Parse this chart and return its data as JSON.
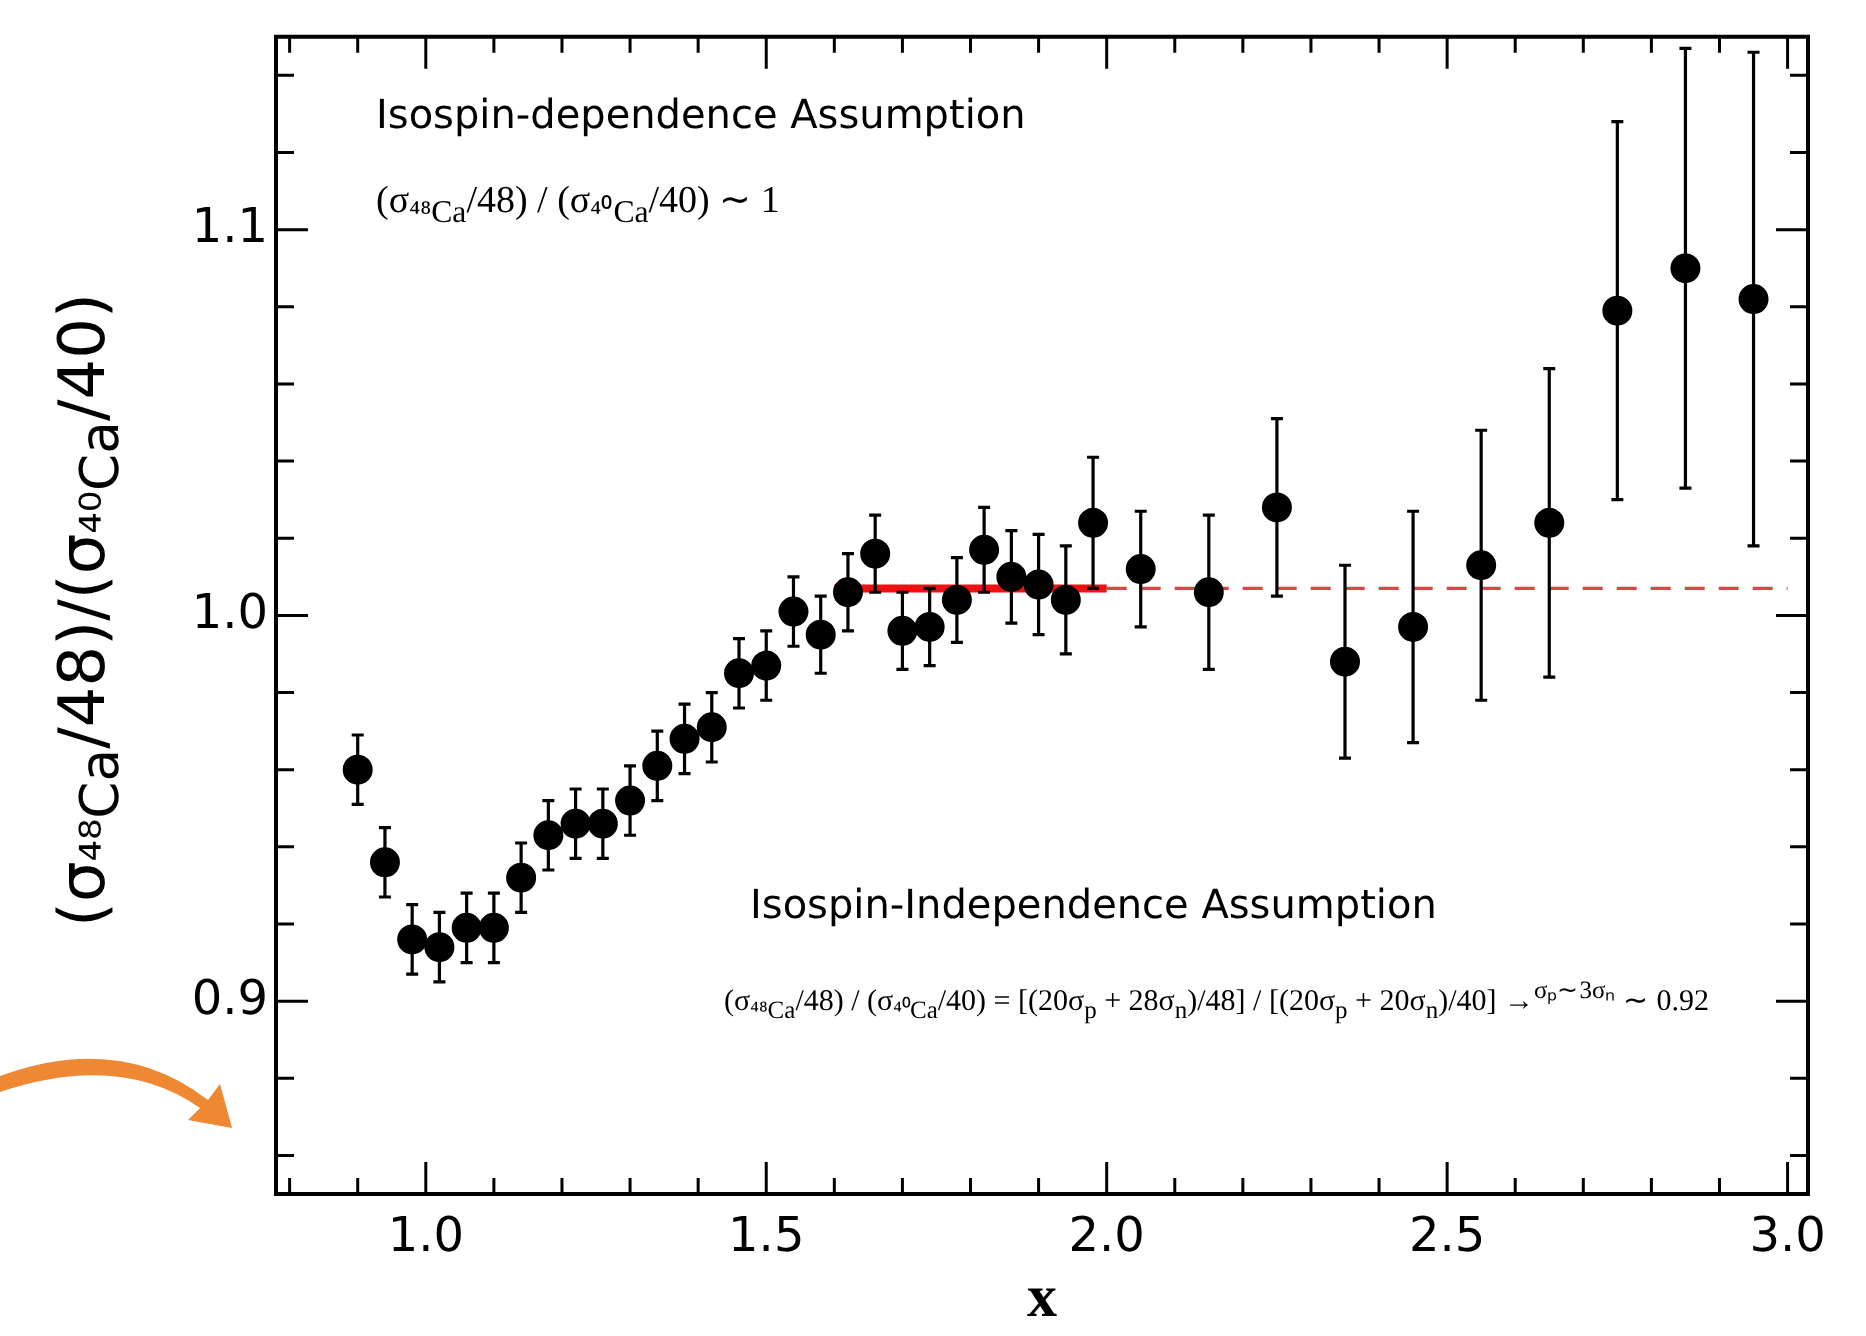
{
  "chart_data": {
    "type": "scatter",
    "xlabel": "x",
    "ylabel": "(σ$_{⁴⁸Ca}$/48)/(σ$_{⁴⁰Ca}$/40)",
    "xlim": [
      0.78,
      3.03
    ],
    "ylim": [
      0.85,
      1.15
    ],
    "xticks": [
      {
        "value": 0.8,
        "label": null
      },
      {
        "value": 0.9,
        "label": null
      },
      {
        "value": 1.0,
        "label": "1.0"
      },
      {
        "value": 1.1,
        "label": null
      },
      {
        "value": 1.2,
        "label": null
      },
      {
        "value": 1.3,
        "label": null
      },
      {
        "value": 1.4,
        "label": null
      },
      {
        "value": 1.5,
        "label": "1.5"
      },
      {
        "value": 1.6,
        "label": null
      },
      {
        "value": 1.7,
        "label": null
      },
      {
        "value": 1.8,
        "label": null
      },
      {
        "value": 1.9,
        "label": null
      },
      {
        "value": 2.0,
        "label": "2.0"
      },
      {
        "value": 2.1,
        "label": null
      },
      {
        "value": 2.2,
        "label": null
      },
      {
        "value": 2.3,
        "label": null
      },
      {
        "value": 2.4,
        "label": null
      },
      {
        "value": 2.5,
        "label": "2.5"
      },
      {
        "value": 2.6,
        "label": null
      },
      {
        "value": 2.7,
        "label": null
      },
      {
        "value": 2.8,
        "label": null
      },
      {
        "value": 2.9,
        "label": null
      },
      {
        "value": 3.0,
        "label": "3.0"
      }
    ],
    "yticks": [
      {
        "value": 0.86,
        "label": null
      },
      {
        "value": 0.88,
        "label": null
      },
      {
        "value": 0.9,
        "label": "0.9"
      },
      {
        "value": 0.92,
        "label": null
      },
      {
        "value": 0.94,
        "label": null
      },
      {
        "value": 0.96,
        "label": null
      },
      {
        "value": 0.98,
        "label": null
      },
      {
        "value": 1.0,
        "label": "1.0"
      },
      {
        "value": 1.02,
        "label": null
      },
      {
        "value": 1.04,
        "label": null
      },
      {
        "value": 1.06,
        "label": null
      },
      {
        "value": 1.08,
        "label": null
      },
      {
        "value": 1.1,
        "label": "1.1"
      },
      {
        "value": 1.12,
        "label": null
      },
      {
        "value": 1.14,
        "label": null
      }
    ],
    "grid": false,
    "legend": false,
    "marker": "circle",
    "series": [
      {
        "color": "#000000",
        "x": [
          0.9,
          0.94,
          0.98,
          1.02,
          1.06,
          1.1,
          1.14,
          1.18,
          1.22,
          1.26,
          1.3,
          1.34,
          1.38,
          1.42,
          1.46,
          1.5,
          1.54,
          1.58,
          1.62,
          1.66,
          1.7,
          1.74,
          1.78,
          1.82,
          1.86,
          1.9,
          1.94,
          1.98,
          2.05,
          2.15,
          2.25,
          2.35,
          2.45,
          2.55,
          2.65,
          2.75,
          2.85,
          2.95
        ],
        "values": [
          0.96,
          0.936,
          0.916,
          0.914,
          0.919,
          0.919,
          0.932,
          0.943,
          0.946,
          0.946,
          0.952,
          0.961,
          0.968,
          0.971,
          0.985,
          0.987,
          1.001,
          0.995,
          1.006,
          1.016,
          0.996,
          0.997,
          1.004,
          1.017,
          1.01,
          1.008,
          1.004,
          1.024,
          1.012,
          1.006,
          1.028,
          0.988,
          0.997,
          1.013,
          1.024,
          1.079,
          1.09,
          1.082
        ],
        "errors": [
          0.009,
          0.009,
          0.009,
          0.009,
          0.009,
          0.009,
          0.009,
          0.009,
          0.009,
          0.009,
          0.009,
          0.009,
          0.009,
          0.009,
          0.009,
          0.009,
          0.009,
          0.01,
          0.01,
          0.01,
          0.01,
          0.01,
          0.011,
          0.011,
          0.012,
          0.013,
          0.014,
          0.017,
          0.015,
          0.02,
          0.023,
          0.025,
          0.03,
          0.035,
          0.04,
          0.049,
          0.057,
          0.064
        ]
      },
      {
        "type": "line",
        "color": "#ee1111",
        "x": [
          1.6,
          2.0
        ],
        "values": [
          1.007,
          1.007
        ],
        "line_style": "solid",
        "marker": "none"
      },
      {
        "type": "line",
        "color": "#dd4444",
        "x": [
          2.0,
          3.0
        ],
        "values": [
          1.007,
          1.007
        ],
        "line_style": "dashed",
        "marker": "none"
      }
    ],
    "annotations": [
      "Isospin-dependence Assumption",
      "(σ$_{⁴⁸Ca}$/48) / (σ$_{⁴⁰Ca}$/40) ∼ 1",
      "Isospin-Independence Assumption",
      "(σ$_{⁴⁸Ca}$/48) / (σ$_{⁴⁰Ca}$/40) = [(20σ$_{p}$ + 28σ$_{n}$)/48] / [(20σ$_{p}$ + 20σ$_{n}$)/40] →$^{σₚ∼3σₙ}$ ∼ 0.92"
    ]
  }
}
